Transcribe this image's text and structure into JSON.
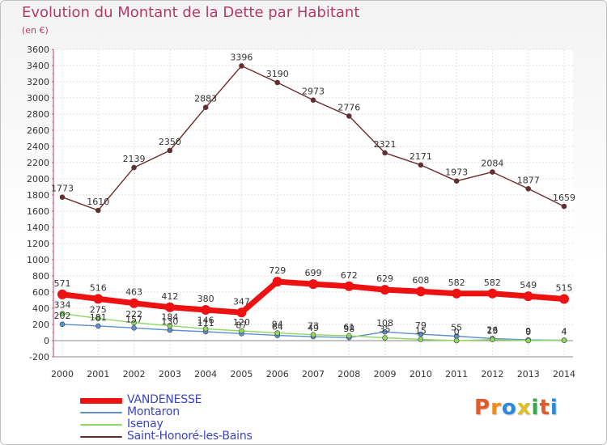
{
  "header": {
    "title": "Evolution du Montant de la Dette par Habitant",
    "unit": "(en €)"
  },
  "logo": {
    "text": "Proxiti"
  },
  "chart_data": {
    "type": "line",
    "title": "Evolution du Montant de la Dette par Habitant",
    "subtitle": "(en €)",
    "x": [
      2000,
      2001,
      2002,
      2003,
      2004,
      2005,
      2006,
      2007,
      2008,
      2009,
      2010,
      2011,
      2012,
      2013,
      2014
    ],
    "ylim": [
      -200,
      3600
    ],
    "yticks": [
      -200,
      0,
      200,
      400,
      600,
      800,
      1000,
      1200,
      1400,
      1600,
      1800,
      2000,
      2200,
      2400,
      2600,
      2800,
      3000,
      3200,
      3400,
      3600
    ],
    "grid": true,
    "legend_position": "bottom-left",
    "series": [
      {
        "name": "VANDENESSE",
        "color": "#ee1111",
        "values": [
          571,
          516,
          463,
          412,
          380,
          347,
          729,
          699,
          672,
          629,
          608,
          582,
          582,
          549,
          515
        ]
      },
      {
        "name": "Montaron",
        "color": "#5a8fd0",
        "values": [
          202,
          181,
          157,
          130,
          111,
          87,
          64,
          49,
          38,
          108,
          79,
          55,
          26,
          9,
          4
        ]
      },
      {
        "name": "Isenay",
        "color": "#8fd860",
        "values": [
          334,
          275,
          222,
          184,
          146,
          120,
          94,
          73,
          61,
          35,
          15,
          0,
          13,
          0,
          4
        ]
      },
      {
        "name": "Saint-Honoré-les-Bains",
        "color": "#6e2a2a",
        "values": [
          1773,
          1610,
          2139,
          2350,
          2883,
          3396,
          3190,
          2973,
          2776,
          2321,
          2171,
          1973,
          2084,
          1877,
          1659
        ]
      }
    ]
  }
}
